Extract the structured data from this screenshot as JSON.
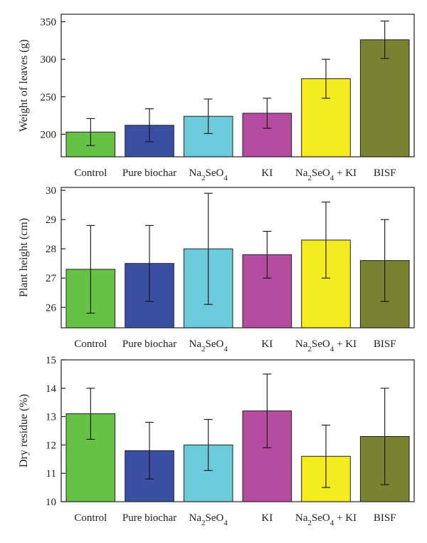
{
  "chart_data": [
    {
      "type": "bar",
      "ylabel": "Weight of leaves (g)",
      "xlabel": "",
      "categories": [
        "Control",
        "Pure biochar",
        "Na2SeO4",
        "KI",
        "Na2SeO4 + KI",
        "BISF"
      ],
      "values": [
        203,
        212,
        224,
        228,
        274,
        326
      ],
      "errors": [
        18,
        22,
        23,
        20,
        26,
        25
      ],
      "ylim": [
        170,
        360
      ],
      "yticks": [
        200,
        250,
        300,
        350
      ],
      "colors": [
        "#66c245",
        "#3b4fa2",
        "#6bcbdb",
        "#b54ca0",
        "#f4ec1e",
        "#7a8232"
      ]
    },
    {
      "type": "bar",
      "ylabel": "Plant height (cm)",
      "xlabel": "",
      "categories": [
        "Control",
        "Pure biochar",
        "Na2SeO4",
        "KI",
        "Na2SeO4 + KI",
        "BISF"
      ],
      "values": [
        27.3,
        27.5,
        28.0,
        27.8,
        28.3,
        27.6
      ],
      "errors": [
        1.5,
        1.3,
        1.9,
        0.8,
        1.3,
        1.4
      ],
      "ylim": [
        25.3,
        30.1
      ],
      "yticks": [
        26,
        27,
        28,
        29,
        30
      ],
      "colors": [
        "#66c245",
        "#3b4fa2",
        "#6bcbdb",
        "#b54ca0",
        "#f4ec1e",
        "#7a8232"
      ]
    },
    {
      "type": "bar",
      "ylabel": "Dry residue (%)",
      "xlabel": "",
      "categories": [
        "Control",
        "Pure biochar",
        "Na2SeO4",
        "KI",
        "Na2SeO4 + KI",
        "BISF"
      ],
      "values": [
        13.1,
        11.8,
        12.0,
        13.2,
        11.6,
        12.3
      ],
      "errors": [
        0.9,
        1.0,
        0.9,
        1.3,
        1.1,
        1.7
      ],
      "ylim": [
        10,
        15
      ],
      "yticks": [
        10,
        11,
        12,
        13,
        14,
        15
      ],
      "colors": [
        "#66c245",
        "#3b4fa2",
        "#6bcbdb",
        "#b54ca0",
        "#f4ec1e",
        "#7a8232"
      ]
    }
  ]
}
